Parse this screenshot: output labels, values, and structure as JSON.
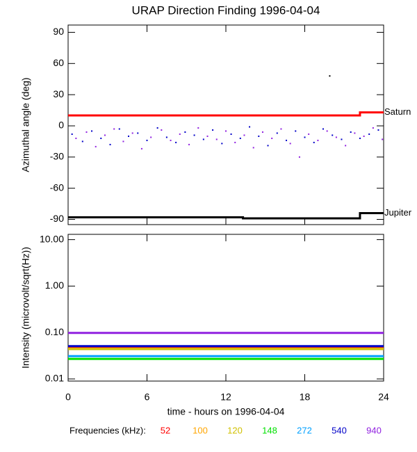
{
  "chart_data": [
    {
      "type": "line",
      "title": "URAP Direction Finding  1996-04-04",
      "ylabel": "Azimuthal angle (deg)",
      "xlim": [
        0,
        24
      ],
      "xticks": [
        0,
        6,
        12,
        18,
        24
      ],
      "ylim": [
        -95,
        97
      ],
      "yticks": [
        -90,
        -60,
        -30,
        0,
        30,
        60,
        90
      ],
      "series_labels": "end",
      "series": [
        {
          "name": "Saturn",
          "color": "#ff0000",
          "x": [
            0,
            22.2,
            22.2,
            24
          ],
          "values": [
            10,
            10,
            13,
            13
          ]
        },
        {
          "name": "Jupiter",
          "color": "#000000",
          "x": [
            0,
            13.3,
            13.3,
            22.2,
            22.2,
            24
          ],
          "values": [
            -88,
            -88,
            -89,
            -89,
            -84,
            -84
          ]
        }
      ],
      "points": [
        {
          "color": "#0000c8",
          "x": [
            0.3,
            1.1,
            1.8,
            2.5,
            3.2,
            3.9,
            4.6,
            5.3,
            6.0,
            6.8,
            7.5,
            8.2,
            8.9,
            9.6,
            10.3,
            11.0,
            11.7,
            12.4,
            13.1,
            13.8,
            14.5,
            15.2,
            15.9,
            16.6,
            17.3,
            18.0,
            18.7,
            19.4,
            20.1,
            20.8,
            21.5,
            22.2,
            22.9,
            23.6
          ],
          "values": [
            -8,
            -15,
            -5,
            -12,
            -18,
            -3,
            -10,
            -7,
            -14,
            -2,
            -11,
            -16,
            -6,
            -9,
            -13,
            -4,
            -17,
            -8,
            -12,
            -1,
            -10,
            -19,
            -7,
            -14,
            -5,
            -11,
            -16,
            -3,
            -9,
            -13,
            -6,
            -12,
            -8,
            -4
          ]
        },
        {
          "color": "#9020e0",
          "x": [
            0.6,
            1.4,
            2.1,
            2.8,
            3.5,
            4.2,
            4.9,
            5.6,
            6.3,
            7.1,
            7.8,
            8.5,
            9.2,
            9.9,
            10.6,
            11.3,
            12.0,
            12.7,
            13.4,
            14.1,
            14.8,
            15.5,
            16.2,
            16.9,
            17.6,
            18.3,
            19.0,
            19.7,
            20.4,
            21.1,
            21.8,
            22.5,
            23.2,
            23.9
          ],
          "values": [
            -12,
            -6,
            -20,
            -9,
            -3,
            -15,
            -7,
            -22,
            -11,
            -4,
            -14,
            -8,
            -18,
            -2,
            -10,
            -13,
            -5,
            -16,
            -9,
            -21,
            -6,
            -12,
            -3,
            -17,
            -30,
            -8,
            -14,
            -5,
            -11,
            -19,
            -7,
            -10,
            -2,
            -13
          ]
        },
        {
          "color": "#000000",
          "x": [
            19.9
          ],
          "values": [
            48
          ]
        }
      ]
    },
    {
      "type": "line",
      "ylabel": "Intensity (microvolt/sqrt(Hz))",
      "xlabel": "time - hours on 1996-04-04",
      "legend_title": "Frequencies (kHz):",
      "legend": "bottom",
      "log_scale": true,
      "xlim": [
        0,
        24
      ],
      "xticks": [
        0,
        6,
        12,
        18,
        24
      ],
      "ylim": [
        0.009,
        13
      ],
      "yticks": [
        0.01,
        {
          "value": 0.1,
          "label": "0.10"
        },
        {
          "value": 1,
          "label": "1.00"
        },
        {
          "value": 10,
          "label": "10.00"
        }
      ],
      "series": [
        {
          "name": "52",
          "color": "#ff0000",
          "x": [
            0,
            24
          ],
          "values": [
            0.047,
            0.047
          ]
        },
        {
          "name": "100",
          "color": "#ffa500",
          "x": [
            0,
            24
          ],
          "values": [
            0.045,
            0.045
          ]
        },
        {
          "name": "120",
          "color": "#d0c000",
          "x": [
            0,
            24
          ],
          "values": [
            0.044,
            0.044
          ]
        },
        {
          "name": "148",
          "color": "#00e000",
          "x": [
            0,
            24
          ],
          "values": [
            0.027,
            0.027
          ]
        },
        {
          "name": "272",
          "color": "#00a0ff",
          "x": [
            0,
            24
          ],
          "values": [
            0.031,
            0.031
          ]
        },
        {
          "name": "540",
          "color": "#0000c8",
          "x": [
            0,
            24
          ],
          "values": [
            0.051,
            0.051
          ]
        },
        {
          "name": "940",
          "color": "#9020e0",
          "x": [
            0,
            24
          ],
          "values": [
            0.098,
            0.098
          ]
        }
      ]
    }
  ]
}
